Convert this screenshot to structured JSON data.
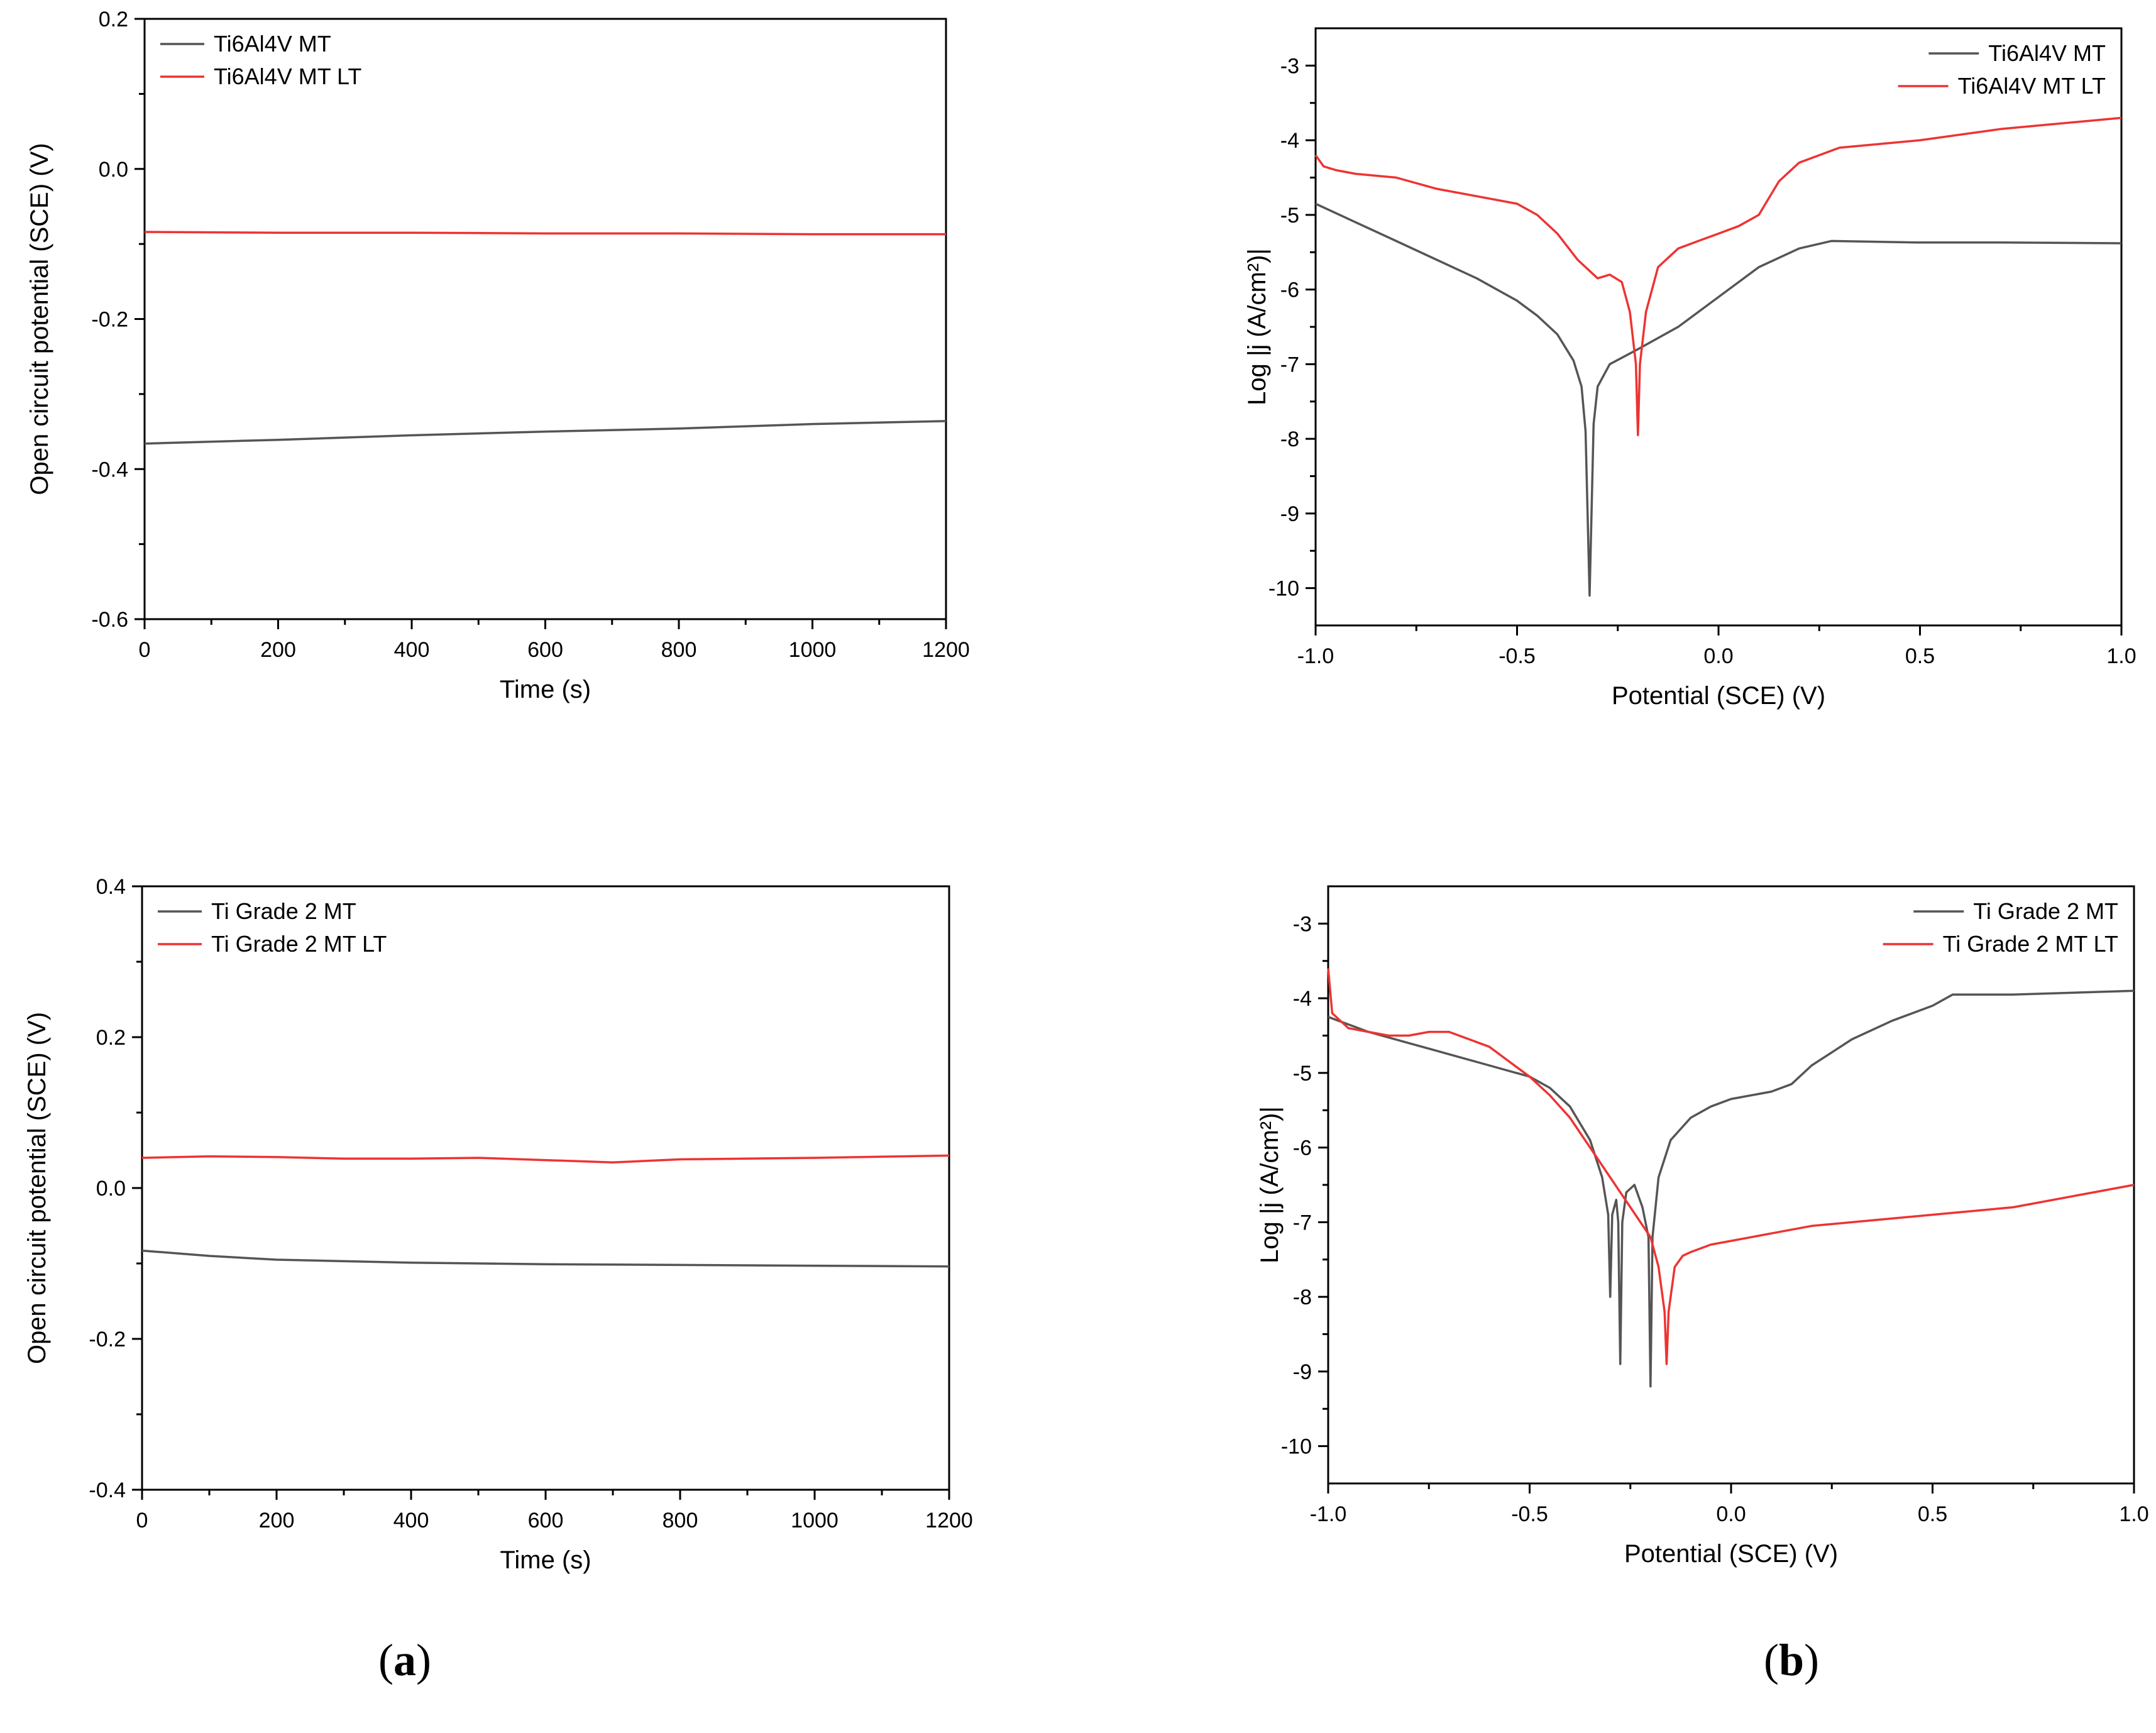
{
  "panel_labels": {
    "a": "a",
    "b": "b",
    "open": "(",
    "close": ")"
  },
  "colors": {
    "mt": "#555555",
    "lt": "#ee3333",
    "axis": "#000000"
  },
  "chart_data": [
    {
      "id": "ocp-ti6al4v",
      "type": "line",
      "xlabel": "Time (s)",
      "ylabel": "Open circuit potential (SCE) (V)",
      "xlim": [
        0,
        1200
      ],
      "ylim": [
        -0.6,
        0.2
      ],
      "xticks": [
        0,
        200,
        400,
        600,
        800,
        1000,
        1200
      ],
      "yticks": [
        -0.6,
        -0.4,
        -0.2,
        0.0,
        0.2
      ],
      "xtick_labels": [
        "0",
        "200",
        "400",
        "600",
        "800",
        "1000",
        "1200"
      ],
      "ytick_labels": [
        "-0.6",
        "-0.4",
        "-0.2",
        "0.0",
        "0.2"
      ],
      "legend_position": "top-left",
      "series": [
        {
          "name": "Ti6Al4V MT",
          "color": "#555555",
          "x": [
            0,
            200,
            400,
            600,
            800,
            1000,
            1200
          ],
          "y": [
            -0.366,
            -0.361,
            -0.355,
            -0.35,
            -0.346,
            -0.34,
            -0.336
          ]
        },
        {
          "name": "Ti6Al4V MT LT",
          "color": "#ee3333",
          "x": [
            0,
            200,
            400,
            600,
            800,
            1000,
            1200
          ],
          "y": [
            -0.084,
            -0.085,
            -0.085,
            -0.086,
            -0.086,
            -0.087,
            -0.087
          ]
        }
      ]
    },
    {
      "id": "pol-ti6al4v",
      "type": "line",
      "xlabel": "Potential (SCE) (V)",
      "ylabel": "Log |j (A/cm²)|",
      "xlim": [
        -1.0,
        1.0
      ],
      "ylim": [
        -10.5,
        -2.5
      ],
      "xticks": [
        -1.0,
        -0.5,
        0.0,
        0.5,
        1.0
      ],
      "yticks": [
        -10,
        -9,
        -8,
        -7,
        -6,
        -5,
        -4,
        -3
      ],
      "xtick_labels": [
        "-1.0",
        "-0.5",
        "0.0",
        "0.5",
        "1.0"
      ],
      "ytick_labels": [
        "-10",
        "-9",
        "-8",
        "-7",
        "-6",
        "-5",
        "-4",
        "-3"
      ],
      "legend_position": "top-right",
      "series": [
        {
          "name": "Ti6Al4V MT",
          "color": "#555555",
          "x": [
            -1.0,
            -0.9,
            -0.8,
            -0.7,
            -0.6,
            -0.5,
            -0.45,
            -0.4,
            -0.36,
            -0.34,
            -0.33,
            -0.32,
            -0.31,
            -0.3,
            -0.27,
            -0.2,
            -0.1,
            0.0,
            0.1,
            0.2,
            0.28,
            0.5,
            0.7,
            1.0
          ],
          "y": [
            -4.85,
            -5.1,
            -5.35,
            -5.6,
            -5.85,
            -6.15,
            -6.35,
            -6.6,
            -6.95,
            -7.3,
            -7.9,
            -10.1,
            -7.8,
            -7.3,
            -7.0,
            -6.8,
            -6.5,
            -6.1,
            -5.7,
            -5.45,
            -5.35,
            -5.37,
            -5.37,
            -5.38
          ]
        },
        {
          "name": "Ti6Al4V MT LT",
          "color": "#ee3333",
          "x": [
            -1.0,
            -0.98,
            -0.95,
            -0.9,
            -0.8,
            -0.7,
            -0.6,
            -0.5,
            -0.45,
            -0.4,
            -0.35,
            -0.3,
            -0.27,
            -0.24,
            -0.22,
            -0.205,
            -0.2,
            -0.195,
            -0.18,
            -0.15,
            -0.1,
            -0.05,
            0.0,
            0.05,
            0.1,
            0.15,
            0.2,
            0.3,
            0.5,
            0.7,
            1.0
          ],
          "y": [
            -4.2,
            -4.35,
            -4.4,
            -4.45,
            -4.5,
            -4.65,
            -4.75,
            -4.85,
            -5.0,
            -5.25,
            -5.6,
            -5.85,
            -5.8,
            -5.9,
            -6.3,
            -7.0,
            -7.95,
            -7.0,
            -6.3,
            -5.7,
            -5.45,
            -5.35,
            -5.25,
            -5.15,
            -5.0,
            -4.55,
            -4.3,
            -4.1,
            -4.0,
            -3.85,
            -3.7
          ]
        }
      ]
    },
    {
      "id": "ocp-ti-grade2",
      "type": "line",
      "xlabel": "Time (s)",
      "ylabel": "Open circuit potential (SCE) (V)",
      "xlim": [
        0,
        1200
      ],
      "ylim": [
        -0.4,
        0.4
      ],
      "xticks": [
        0,
        200,
        400,
        600,
        800,
        1000,
        1200
      ],
      "yticks": [
        -0.4,
        -0.2,
        0.0,
        0.2,
        0.4
      ],
      "xtick_labels": [
        "0",
        "200",
        "400",
        "600",
        "800",
        "1000",
        "1200"
      ],
      "ytick_labels": [
        "-0.4",
        "-0.2",
        "0.0",
        "0.2",
        "0.4"
      ],
      "legend_position": "top-left",
      "series": [
        {
          "name": "Ti Grade 2 MT",
          "color": "#555555",
          "x": [
            0,
            100,
            200,
            300,
            400,
            600,
            800,
            1000,
            1200
          ],
          "y": [
            -0.083,
            -0.09,
            -0.095,
            -0.097,
            -0.099,
            -0.101,
            -0.102,
            -0.103,
            -0.104
          ]
        },
        {
          "name": "Ti Grade 2 MT LT",
          "color": "#ee3333",
          "x": [
            0,
            100,
            200,
            300,
            400,
            500,
            600,
            700,
            800,
            1000,
            1200
          ],
          "y": [
            0.04,
            0.042,
            0.041,
            0.039,
            0.039,
            0.04,
            0.037,
            0.034,
            0.038,
            0.04,
            0.043
          ]
        }
      ]
    },
    {
      "id": "pol-ti-grade2",
      "type": "line",
      "xlabel": "Potential (SCE) (V)",
      "ylabel": "Log |j (A/cm²)|",
      "xlim": [
        -1.0,
        1.0
      ],
      "ylim": [
        -10.5,
        -2.5
      ],
      "xticks": [
        -1.0,
        -0.5,
        0.0,
        0.5,
        1.0
      ],
      "yticks": [
        -10,
        -9,
        -8,
        -7,
        -6,
        -5,
        -4,
        -3
      ],
      "xtick_labels": [
        "-1.0",
        "-0.5",
        "0.0",
        "0.5",
        "1.0"
      ],
      "ytick_labels": [
        "-10",
        "-9",
        "-8",
        "-7",
        "-6",
        "-5",
        "-4",
        "-3"
      ],
      "legend_position": "top-right",
      "series": [
        {
          "name": "Ti Grade 2 MT",
          "color": "#555555",
          "x": [
            -1.0,
            -0.9,
            -0.8,
            -0.7,
            -0.6,
            -0.5,
            -0.45,
            -0.4,
            -0.35,
            -0.32,
            -0.305,
            -0.3,
            -0.295,
            -0.285,
            -0.28,
            -0.275,
            -0.27,
            -0.26,
            -0.24,
            -0.22,
            -0.205,
            -0.2,
            -0.195,
            -0.18,
            -0.15,
            -0.1,
            -0.05,
            0.0,
            0.1,
            0.15,
            0.2,
            0.3,
            0.4,
            0.5,
            0.55,
            0.6,
            0.7,
            1.0
          ],
          "y": [
            -4.25,
            -4.45,
            -4.6,
            -4.75,
            -4.9,
            -5.05,
            -5.2,
            -5.45,
            -5.9,
            -6.4,
            -6.9,
            -8.0,
            -6.9,
            -6.7,
            -7.0,
            -8.9,
            -7.0,
            -6.6,
            -6.5,
            -6.8,
            -7.2,
            -9.2,
            -7.2,
            -6.4,
            -5.9,
            -5.6,
            -5.45,
            -5.35,
            -5.25,
            -5.15,
            -4.9,
            -4.55,
            -4.3,
            -4.1,
            -3.95,
            -3.95,
            -3.95,
            -3.9
          ]
        },
        {
          "name": "Ti Grade 2 MT LT",
          "color": "#ee3333",
          "x": [
            -1.0,
            -0.99,
            -0.95,
            -0.9,
            -0.85,
            -0.8,
            -0.75,
            -0.7,
            -0.65,
            -0.6,
            -0.55,
            -0.5,
            -0.45,
            -0.4,
            -0.35,
            -0.3,
            -0.25,
            -0.2,
            -0.18,
            -0.165,
            -0.16,
            -0.155,
            -0.14,
            -0.12,
            -0.1,
            -0.05,
            0.0,
            0.1,
            0.2,
            0.3,
            0.5,
            0.7,
            1.0
          ],
          "y": [
            -3.6,
            -4.2,
            -4.4,
            -4.45,
            -4.5,
            -4.5,
            -4.45,
            -4.45,
            -4.55,
            -4.65,
            -4.85,
            -5.05,
            -5.3,
            -5.6,
            -6.0,
            -6.4,
            -6.8,
            -7.2,
            -7.6,
            -8.2,
            -8.9,
            -8.2,
            -7.6,
            -7.45,
            -7.4,
            -7.3,
            -7.25,
            -7.15,
            -7.05,
            -7.0,
            -6.9,
            -6.8,
            -6.5
          ]
        }
      ]
    }
  ]
}
